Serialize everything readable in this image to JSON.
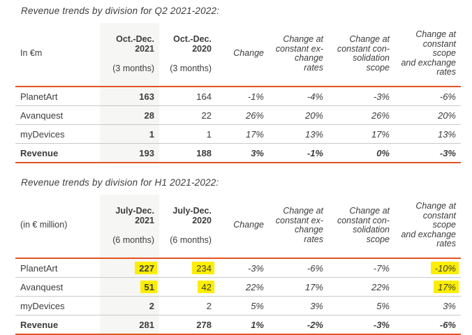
{
  "colors": {
    "accent": "#e25420",
    "separator": "#c9c9c9",
    "text": "#3c3c3b",
    "shaded_column": "#f6f6f5",
    "highlight": "#fcee00"
  },
  "tables": [
    {
      "title": "Revenue trends by division for Q2 2021-2022:",
      "unit_header": "In €m",
      "period_headers": [
        {
          "period": "Oct.-Dec.\n2021",
          "months": "(3 months)"
        },
        {
          "period": "Oct.-Dec.\n2020",
          "months": "(3 months)"
        }
      ],
      "change_headers": [
        "Change",
        "Change at\nconstant ex-\nchange rates",
        "Change at\nconstant con-\nsolidation\nscope",
        "Change at\nconstant scope\nand exchange\nrates"
      ],
      "rows": [
        {
          "label": "PlanetArt",
          "values": [
            "163",
            "164",
            "-1%",
            "-4%",
            "-3%",
            "-6%"
          ]
        },
        {
          "label": "Avanquest",
          "values": [
            "28",
            "22",
            "26%",
            "20%",
            "26%",
            "20%"
          ]
        },
        {
          "label": "myDevices",
          "values": [
            "1",
            "1",
            "17%",
            "13%",
            "17%",
            "13%"
          ]
        },
        {
          "label": "Revenue",
          "values": [
            "193",
            "188",
            "3%",
            "-1%",
            "0%",
            "-3%"
          ],
          "is_total": true
        }
      ]
    },
    {
      "title": "Revenue trends by division for H1 2021-2022:",
      "unit_header": "(in € million)",
      "period_headers": [
        {
          "period": "July-Dec.\n2021",
          "months": "(6 months)"
        },
        {
          "period": "July-Dec.\n2020",
          "months": "(6 months)"
        }
      ],
      "change_headers": [
        "Change",
        "Change at\nconstant ex-\nchange rates",
        "Change at\nconstant con-\nsolidation\nscope",
        "Change at\nconstant scope\nand exchange\nrates"
      ],
      "rows": [
        {
          "label": "PlanetArt",
          "values": [
            "227",
            "234",
            "-3%",
            "-6%",
            "-7%",
            "-10%"
          ],
          "highlighted_values": [
            "227",
            "234",
            "-10%"
          ]
        },
        {
          "label": "Avanquest",
          "values": [
            "51",
            "42",
            "22%",
            "17%",
            "22%",
            "17%"
          ],
          "highlighted_values": [
            "51",
            "42",
            "17%"
          ]
        },
        {
          "label": "myDevices",
          "values": [
            "2",
            "2",
            "5%",
            "3%",
            "5%",
            "3%"
          ]
        },
        {
          "label": "Revenue",
          "values": [
            "281",
            "278",
            "1%",
            "-2%",
            "-3%",
            "-6%"
          ],
          "is_total": true
        }
      ]
    }
  ]
}
